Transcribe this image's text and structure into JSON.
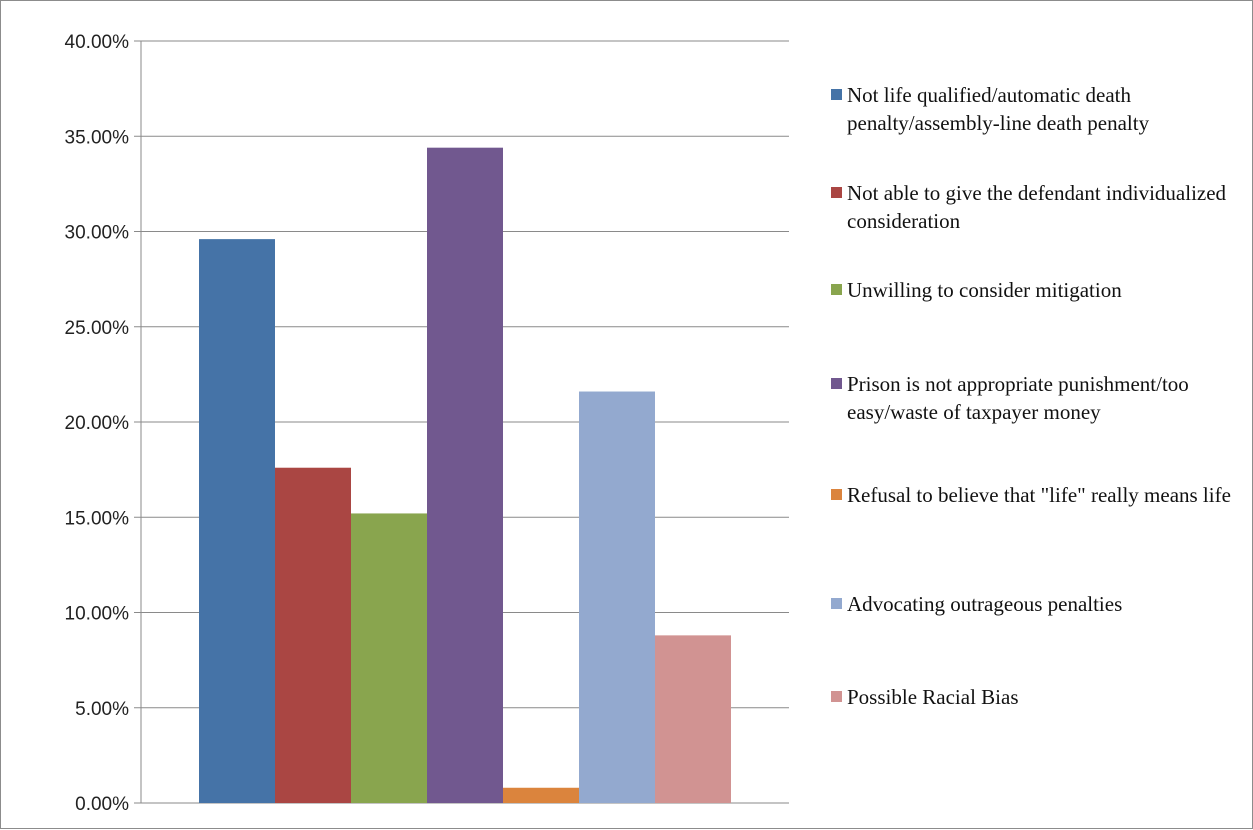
{
  "chart_data": {
    "type": "bar",
    "title": "",
    "xlabel": "",
    "ylabel": "",
    "ylim": [
      0,
      0.4
    ],
    "y_ticks": [
      "0.00%",
      "5.00%",
      "10.00%",
      "15.00%",
      "20.00%",
      "25.00%",
      "30.00%",
      "35.00%",
      "40.00%"
    ],
    "grid": true,
    "legend_position": "right",
    "series": [
      {
        "name": "Not life qualified/automatic death penalty/assembly-line death penalty",
        "value": 0.296,
        "color": "#4573A7"
      },
      {
        "name": "Not able to give the defendant individualized consideration",
        "value": 0.176,
        "color": "#AA4643"
      },
      {
        "name": "Unwilling to consider mitigation",
        "value": 0.152,
        "color": "#89A54E"
      },
      {
        "name": "Prison is not appropriate punishment/too easy/waste of taxpayer money",
        "value": 0.344,
        "color": "#71588F"
      },
      {
        "name": "Refusal to believe that \"life\" really means life",
        "value": 0.008,
        "color": "#DB843D"
      },
      {
        "name": "Advocating outrageous penalties",
        "value": 0.216,
        "color": "#93A9CF"
      },
      {
        "name": "Possible Racial Bias",
        "value": 0.088,
        "color": "#D19392"
      }
    ]
  }
}
